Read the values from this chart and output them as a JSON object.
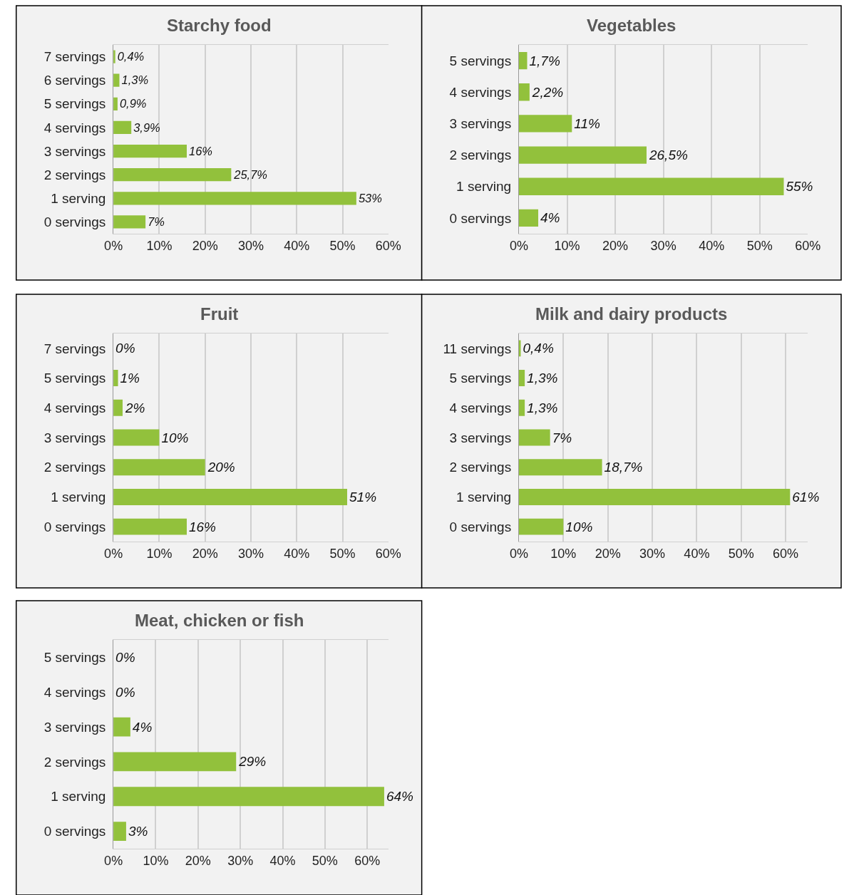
{
  "chart_data": [
    {
      "type": "bar",
      "orientation": "horizontal",
      "title": "Starchy food",
      "categories": [
        "7 servings",
        "6 servings",
        "5 servings",
        "4 servings",
        "3 servings",
        "2 servings",
        "1 serving",
        "0 servings"
      ],
      "values": [
        0.4,
        1.3,
        0.9,
        3.9,
        16,
        25.7,
        53,
        7
      ],
      "value_labels": [
        "0,4%",
        "1,3%",
        "0,9%",
        "3,9%",
        "16%",
        "25,7%",
        "53%",
        "7%"
      ],
      "color": "#92c13c",
      "xlim": [
        0,
        60
      ],
      "xticks": [
        {
          "value": 0,
          "label": "0%"
        },
        {
          "value": 10,
          "label": "10%"
        },
        {
          "value": 20,
          "label": "20%"
        },
        {
          "value": 30,
          "label": "30%"
        },
        {
          "value": 40,
          "label": "40%"
        },
        {
          "value": 50,
          "label": "50%"
        },
        {
          "value": 60,
          "label": "60%"
        }
      ],
      "grid": "x"
    },
    {
      "type": "bar",
      "orientation": "horizontal",
      "title": "Vegetables",
      "categories": [
        "5 servings",
        "4 servings",
        "3 servings",
        "2 servings",
        "1 serving",
        "0 servings"
      ],
      "values": [
        1.7,
        2.2,
        11,
        26.5,
        55,
        4
      ],
      "value_labels": [
        "1,7%",
        "2,2%",
        "11%",
        "26,5%",
        "55%",
        "4%"
      ],
      "color": "#92c13c",
      "xlim": [
        0,
        60
      ],
      "xticks": [
        {
          "value": 0,
          "label": "0%"
        },
        {
          "value": 10,
          "label": "10%"
        },
        {
          "value": 20,
          "label": "20%"
        },
        {
          "value": 30,
          "label": "30%"
        },
        {
          "value": 40,
          "label": "40%"
        },
        {
          "value": 50,
          "label": "50%"
        },
        {
          "value": 60,
          "label": "60%"
        }
      ],
      "grid": "x"
    },
    {
      "type": "bar",
      "orientation": "horizontal",
      "title": "Fruit",
      "categories": [
        "7 servings",
        "5 servings",
        "4 servings",
        "3 servings",
        "2 servings",
        "1 serving",
        "0 servings"
      ],
      "values": [
        0,
        1,
        2,
        10,
        20,
        51,
        16
      ],
      "value_labels": [
        "0%",
        "1%",
        "2%",
        "10%",
        "20%",
        "51%",
        "16%"
      ],
      "color": "#92c13c",
      "xlim": [
        0,
        60
      ],
      "xticks": [
        {
          "value": 0,
          "label": "0%"
        },
        {
          "value": 10,
          "label": "10%"
        },
        {
          "value": 20,
          "label": "20%"
        },
        {
          "value": 30,
          "label": "30%"
        },
        {
          "value": 40,
          "label": "40%"
        },
        {
          "value": 50,
          "label": "50%"
        },
        {
          "value": 60,
          "label": "60%"
        }
      ],
      "grid": "x"
    },
    {
      "type": "bar",
      "orientation": "horizontal",
      "title": "Milk and dairy products",
      "categories": [
        "11 servings",
        "5 servings",
        "4 servings",
        "3 servings",
        "2 servings",
        "1 serving",
        "0 servings"
      ],
      "values": [
        0.4,
        1.3,
        1.3,
        7,
        18.7,
        61,
        10
      ],
      "value_labels": [
        "0,4%",
        "1,3%",
        "1,3%",
        "7%",
        "18,7%",
        "61%",
        "10%"
      ],
      "color": "#92c13c",
      "xlim": [
        0,
        65
      ],
      "xticks": [
        {
          "value": 0,
          "label": "0%"
        },
        {
          "value": 10,
          "label": "10%"
        },
        {
          "value": 20,
          "label": "20%"
        },
        {
          "value": 30,
          "label": "30%"
        },
        {
          "value": 40,
          "label": "40%"
        },
        {
          "value": 50,
          "label": "50%"
        },
        {
          "value": 60,
          "label": "60%"
        }
      ],
      "grid": "x"
    },
    {
      "type": "bar",
      "orientation": "horizontal",
      "title": "Meat, chicken or fish",
      "categories": [
        "5 servings",
        "4 servings",
        "3 servings",
        "2 servings",
        "1 serving",
        "0 servings"
      ],
      "values": [
        0,
        0,
        4,
        29,
        64,
        3
      ],
      "value_labels": [
        "0%",
        "0%",
        "4%",
        "29%",
        "64%",
        "3%"
      ],
      "color": "#92c13c",
      "xlim": [
        0,
        65
      ],
      "xticks": [
        {
          "value": 0,
          "label": "0%"
        },
        {
          "value": 10,
          "label": "10%"
        },
        {
          "value": 20,
          "label": "20%"
        },
        {
          "value": 30,
          "label": "30%"
        },
        {
          "value": 40,
          "label": "40%"
        },
        {
          "value": 50,
          "label": "50%"
        },
        {
          "value": 60,
          "label": "60%"
        }
      ],
      "grid": "x"
    }
  ]
}
